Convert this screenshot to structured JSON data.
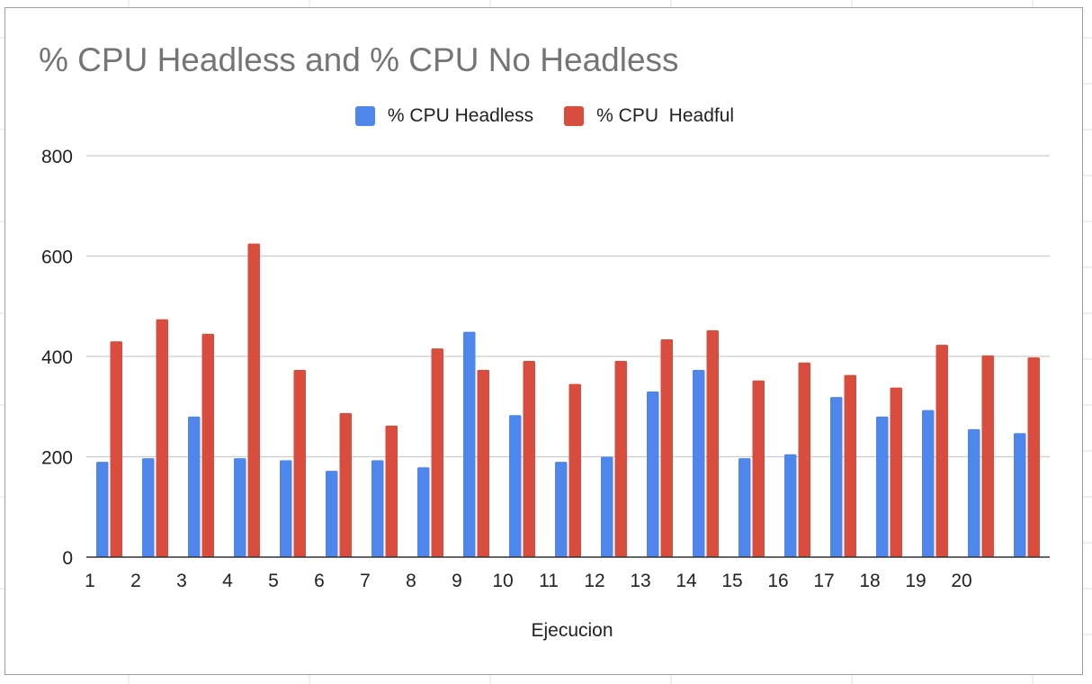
{
  "chart_data": {
    "type": "bar",
    "title": "% CPU Headless and % CPU No Headless",
    "xlabel": "Ejecucion",
    "ylabel": "",
    "ylim": [
      0,
      800
    ],
    "yticks": [
      0,
      200,
      400,
      600,
      800
    ],
    "grid": true,
    "legend_position": "top",
    "categories": [
      "1",
      "2",
      "3",
      "4",
      "5",
      "6",
      "7",
      "8",
      "9",
      "10",
      "11",
      "12",
      "13",
      "14",
      "15",
      "16",
      "17",
      "18",
      "19",
      "20",
      ""
    ],
    "series": [
      {
        "name": "% CPU Headless",
        "color": "#4f86ec",
        "values": [
          190,
          197,
          280,
          197,
          193,
          172,
          193,
          179,
          449,
          283,
          190,
          200,
          330,
          373,
          197,
          205,
          319,
          280,
          293,
          255,
          247
        ]
      },
      {
        "name": "% CPU  Headful",
        "color": "#d94d3f",
        "values": [
          430,
          474,
          445,
          625,
          373,
          287,
          262,
          416,
          373,
          391,
          345,
          391,
          434,
          452,
          352,
          388,
          363,
          338,
          423,
          402,
          398
        ]
      }
    ]
  }
}
